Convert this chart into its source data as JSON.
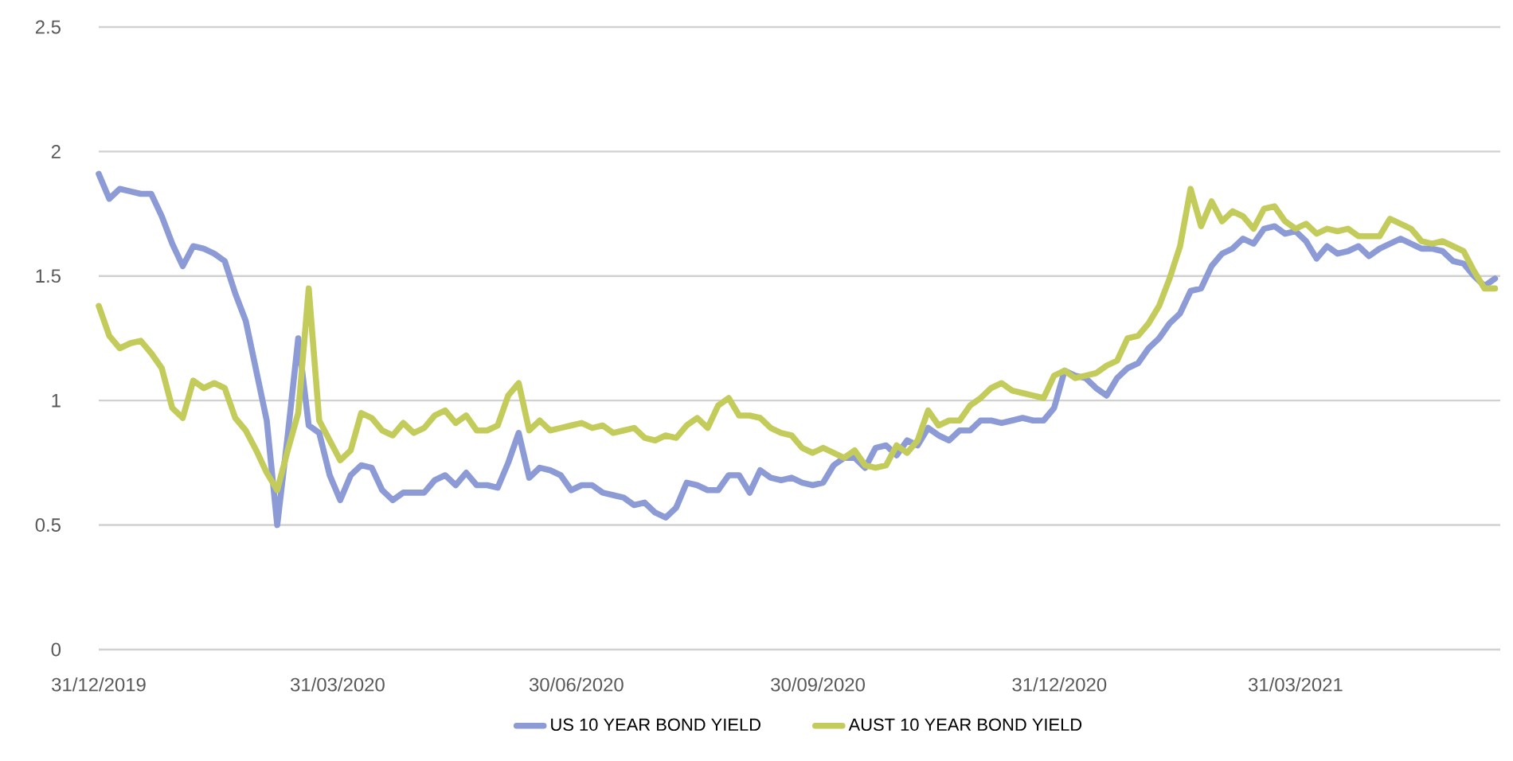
{
  "chart_data": {
    "type": "line",
    "x": [
      "2019-12-31",
      "2020-01-04",
      "2020-01-08",
      "2020-01-12",
      "2020-01-16",
      "2020-01-20",
      "2020-01-24",
      "2020-01-28",
      "2020-02-01",
      "2020-02-05",
      "2020-02-09",
      "2020-02-13",
      "2020-02-17",
      "2020-02-21",
      "2020-02-25",
      "2020-02-29",
      "2020-03-04",
      "2020-03-08",
      "2020-03-12",
      "2020-03-16",
      "2020-03-20",
      "2020-03-24",
      "2020-03-28",
      "2020-04-01",
      "2020-04-05",
      "2020-04-09",
      "2020-04-13",
      "2020-04-17",
      "2020-04-21",
      "2020-04-25",
      "2020-04-29",
      "2020-05-03",
      "2020-05-07",
      "2020-05-11",
      "2020-05-15",
      "2020-05-19",
      "2020-05-23",
      "2020-05-27",
      "2020-05-31",
      "2020-06-04",
      "2020-06-08",
      "2020-06-12",
      "2020-06-16",
      "2020-06-20",
      "2020-06-24",
      "2020-06-28",
      "2020-07-02",
      "2020-07-06",
      "2020-07-10",
      "2020-07-14",
      "2020-07-18",
      "2020-07-22",
      "2020-07-26",
      "2020-07-30",
      "2020-08-03",
      "2020-08-07",
      "2020-08-11",
      "2020-08-15",
      "2020-08-19",
      "2020-08-23",
      "2020-08-27",
      "2020-08-31",
      "2020-09-04",
      "2020-09-08",
      "2020-09-12",
      "2020-09-16",
      "2020-09-20",
      "2020-09-24",
      "2020-09-28",
      "2020-10-02",
      "2020-10-06",
      "2020-10-10",
      "2020-10-14",
      "2020-10-18",
      "2020-10-22",
      "2020-10-26",
      "2020-10-30",
      "2020-11-03",
      "2020-11-07",
      "2020-11-11",
      "2020-11-15",
      "2020-11-19",
      "2020-11-23",
      "2020-11-27",
      "2020-12-01",
      "2020-12-05",
      "2020-12-09",
      "2020-12-13",
      "2020-12-17",
      "2020-12-21",
      "2020-12-25",
      "2020-12-29",
      "2021-01-02",
      "2021-01-06",
      "2021-01-10",
      "2021-01-14",
      "2021-01-18",
      "2021-01-22",
      "2021-01-26",
      "2021-01-30",
      "2021-02-03",
      "2021-02-07",
      "2021-02-11",
      "2021-02-15",
      "2021-02-19",
      "2021-02-23",
      "2021-02-27",
      "2021-03-03",
      "2021-03-07",
      "2021-03-11",
      "2021-03-15",
      "2021-03-19",
      "2021-03-23",
      "2021-03-27",
      "2021-03-31",
      "2021-04-04",
      "2021-04-08",
      "2021-04-12",
      "2021-04-16",
      "2021-04-20",
      "2021-04-24",
      "2021-04-28",
      "2021-05-02",
      "2021-05-06",
      "2021-05-10",
      "2021-05-14",
      "2021-05-18",
      "2021-05-22",
      "2021-05-26",
      "2021-05-30",
      "2021-06-03",
      "2021-06-07",
      "2021-06-11",
      "2021-06-15"
    ],
    "series": [
      {
        "name": "US 10 YEAR BOND YIELD",
        "color": "#8c9bd6",
        "values": [
          1.91,
          1.81,
          1.85,
          1.84,
          1.83,
          1.83,
          1.74,
          1.63,
          1.54,
          1.62,
          1.61,
          1.59,
          1.56,
          1.43,
          1.32,
          1.12,
          0.92,
          0.5,
          0.86,
          1.25,
          0.9,
          0.87,
          0.7,
          0.6,
          0.7,
          0.74,
          0.73,
          0.64,
          0.6,
          0.63,
          0.63,
          0.63,
          0.68,
          0.7,
          0.66,
          0.71,
          0.66,
          0.66,
          0.65,
          0.75,
          0.87,
          0.69,
          0.73,
          0.72,
          0.7,
          0.64,
          0.66,
          0.66,
          0.63,
          0.62,
          0.61,
          0.58,
          0.59,
          0.55,
          0.53,
          0.57,
          0.67,
          0.66,
          0.64,
          0.64,
          0.7,
          0.7,
          0.63,
          0.72,
          0.69,
          0.68,
          0.69,
          0.67,
          0.66,
          0.67,
          0.74,
          0.77,
          0.77,
          0.73,
          0.81,
          0.82,
          0.78,
          0.84,
          0.82,
          0.89,
          0.86,
          0.84,
          0.88,
          0.88,
          0.92,
          0.92,
          0.91,
          0.92,
          0.93,
          0.92,
          0.92,
          0.97,
          1.12,
          1.1,
          1.09,
          1.05,
          1.02,
          1.09,
          1.13,
          1.15,
          1.21,
          1.25,
          1.31,
          1.35,
          1.44,
          1.45,
          1.54,
          1.59,
          1.61,
          1.65,
          1.63,
          1.69,
          1.7,
          1.67,
          1.68,
          1.64,
          1.57,
          1.62,
          1.59,
          1.6,
          1.62,
          1.58,
          1.61,
          1.63,
          1.65,
          1.63,
          1.61,
          1.61,
          1.6,
          1.56,
          1.55,
          1.5,
          1.46,
          1.49
        ]
      },
      {
        "name": "AUST 10 YEAR BOND YIELD",
        "color": "#c3cc5a",
        "values": [
          1.38,
          1.26,
          1.21,
          1.23,
          1.24,
          1.19,
          1.13,
          0.97,
          0.93,
          1.08,
          1.05,
          1.07,
          1.05,
          0.93,
          0.88,
          0.8,
          0.71,
          0.64,
          0.8,
          0.95,
          1.45,
          0.92,
          0.84,
          0.76,
          0.8,
          0.95,
          0.93,
          0.88,
          0.86,
          0.91,
          0.87,
          0.89,
          0.94,
          0.96,
          0.91,
          0.94,
          0.88,
          0.88,
          0.9,
          1.02,
          1.07,
          0.88,
          0.92,
          0.88,
          0.89,
          0.9,
          0.91,
          0.89,
          0.9,
          0.87,
          0.88,
          0.89,
          0.85,
          0.84,
          0.86,
          0.85,
          0.9,
          0.93,
          0.89,
          0.98,
          1.01,
          0.94,
          0.94,
          0.93,
          0.89,
          0.87,
          0.86,
          0.81,
          0.79,
          0.81,
          0.79,
          0.77,
          0.8,
          0.74,
          0.73,
          0.74,
          0.82,
          0.79,
          0.84,
          0.96,
          0.9,
          0.92,
          0.92,
          0.98,
          1.01,
          1.05,
          1.07,
          1.04,
          1.03,
          1.02,
          1.01,
          1.1,
          1.12,
          1.09,
          1.1,
          1.11,
          1.14,
          1.16,
          1.25,
          1.26,
          1.31,
          1.38,
          1.49,
          1.62,
          1.85,
          1.7,
          1.8,
          1.72,
          1.76,
          1.74,
          1.69,
          1.77,
          1.78,
          1.72,
          1.69,
          1.71,
          1.67,
          1.69,
          1.68,
          1.69,
          1.66,
          1.66,
          1.66,
          1.73,
          1.71,
          1.69,
          1.64,
          1.63,
          1.64,
          1.62,
          1.6,
          1.52,
          1.45,
          1.45
        ]
      }
    ],
    "xlim": [
      "2019-12-31",
      "2021-06-17"
    ],
    "xticks": [
      {
        "value": "2019-12-31",
        "label": "31/12/2019"
      },
      {
        "value": "2020-03-31",
        "label": "31/03/2020"
      },
      {
        "value": "2020-06-30",
        "label": "30/06/2020"
      },
      {
        "value": "2020-09-30",
        "label": "30/09/2020"
      },
      {
        "value": "2020-12-31",
        "label": "31/12/2020"
      },
      {
        "value": "2021-03-31",
        "label": "31/03/2021"
      }
    ],
    "ylim": [
      0,
      2.5
    ],
    "yticks": [
      0,
      0.5,
      1,
      1.5,
      2,
      2.5
    ],
    "grid": "y",
    "legend": "bottom",
    "marker": "none",
    "line_style": "solid"
  }
}
